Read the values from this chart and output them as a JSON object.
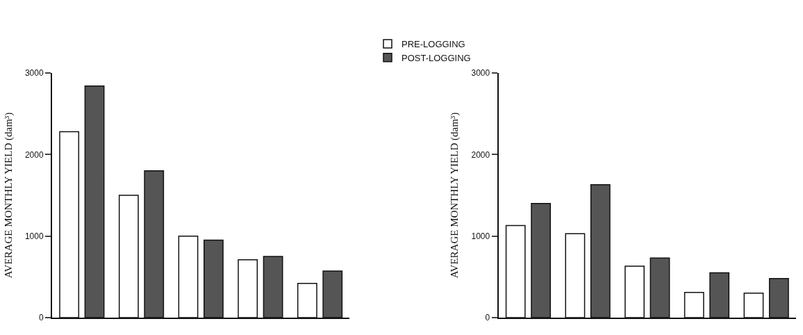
{
  "chart_data": [
    {
      "type": "bar",
      "ylabel": "AVERAGE MONTHLY YIELD (dam³)",
      "categories": [
        null,
        null,
        null,
        null,
        null
      ],
      "ylim": [
        0,
        3000
      ],
      "yticks": [
        0,
        1000,
        2000,
        3000
      ],
      "legend": "top",
      "series": [
        {
          "name": "PRE-LOGGING",
          "color": "#ffffff",
          "values": [
            2280,
            1500,
            1000,
            710,
            420
          ]
        },
        {
          "name": "POST-LOGGING",
          "color": "#555555",
          "values": [
            2840,
            1800,
            950,
            750,
            570
          ]
        }
      ]
    },
    {
      "type": "bar",
      "ylabel": "AVERAGE MONTHLY YIELD (dam³)",
      "categories": [
        null,
        null,
        null,
        null,
        null
      ],
      "ylim": [
        0,
        3000
      ],
      "yticks": [
        0,
        1000,
        2000,
        3000
      ],
      "series": [
        {
          "color": "#ffffff",
          "values": [
            1130,
            1030,
            630,
            310,
            300
          ]
        },
        {
          "color": "#555555",
          "values": [
            1400,
            1630,
            730,
            550,
            480
          ]
        }
      ]
    }
  ]
}
